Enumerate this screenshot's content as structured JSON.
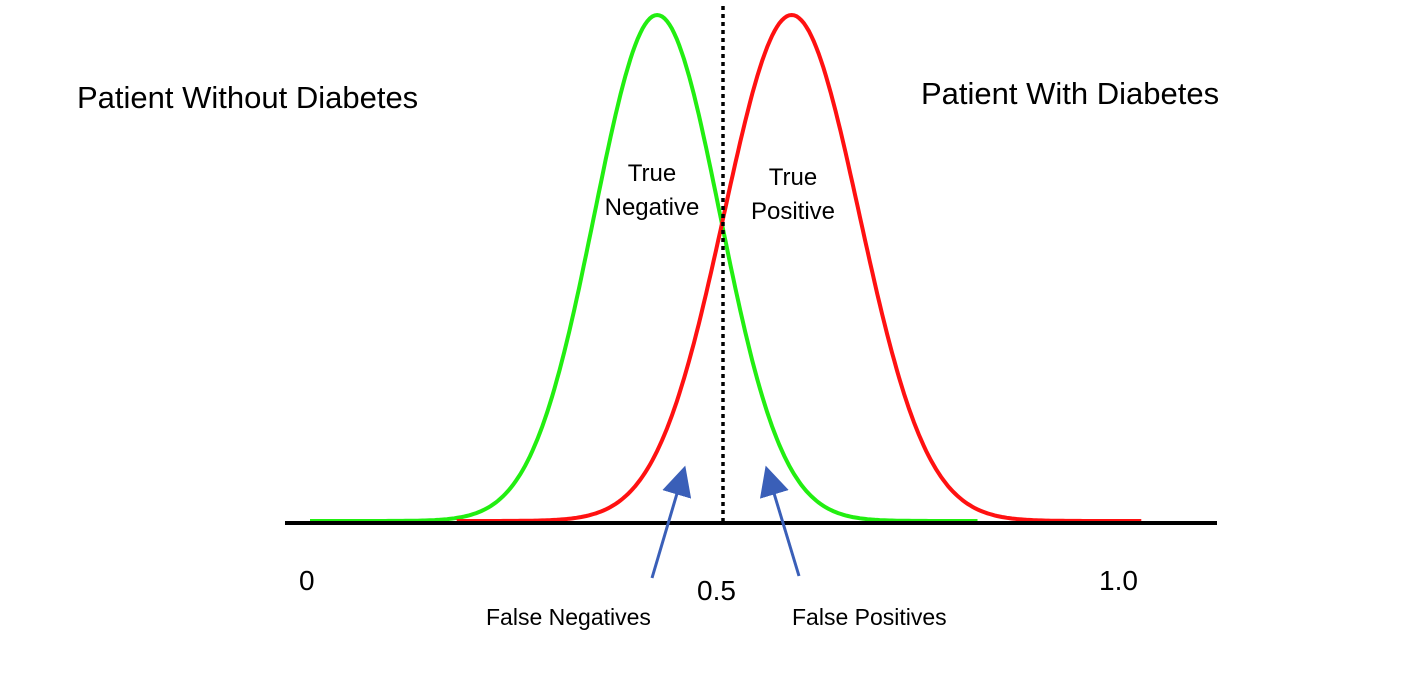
{
  "title_left": "Patient Without Diabetes",
  "title_right": "Patient With Diabetes",
  "regions": {
    "true_negative": [
      "True",
      "Negative"
    ],
    "true_positive": [
      "True",
      "Positive"
    ]
  },
  "annotations": {
    "false_negatives": "False Negatives",
    "false_positives": "False Positives"
  },
  "axis": {
    "ticks": [
      "0",
      "0.5",
      "1.0"
    ],
    "threshold": 0.5
  },
  "colors": {
    "negative": "#22ee11",
    "positive": "#ff1111",
    "arrow": "#3a5fb8"
  },
  "curves": {
    "negative": {
      "mean": 0.426,
      "std": 0.077,
      "range": [
        0,
        0.82
      ]
    },
    "positive": {
      "mean": 0.591,
      "std": 0.083,
      "range": [
        0.18,
        1.02
      ]
    }
  }
}
